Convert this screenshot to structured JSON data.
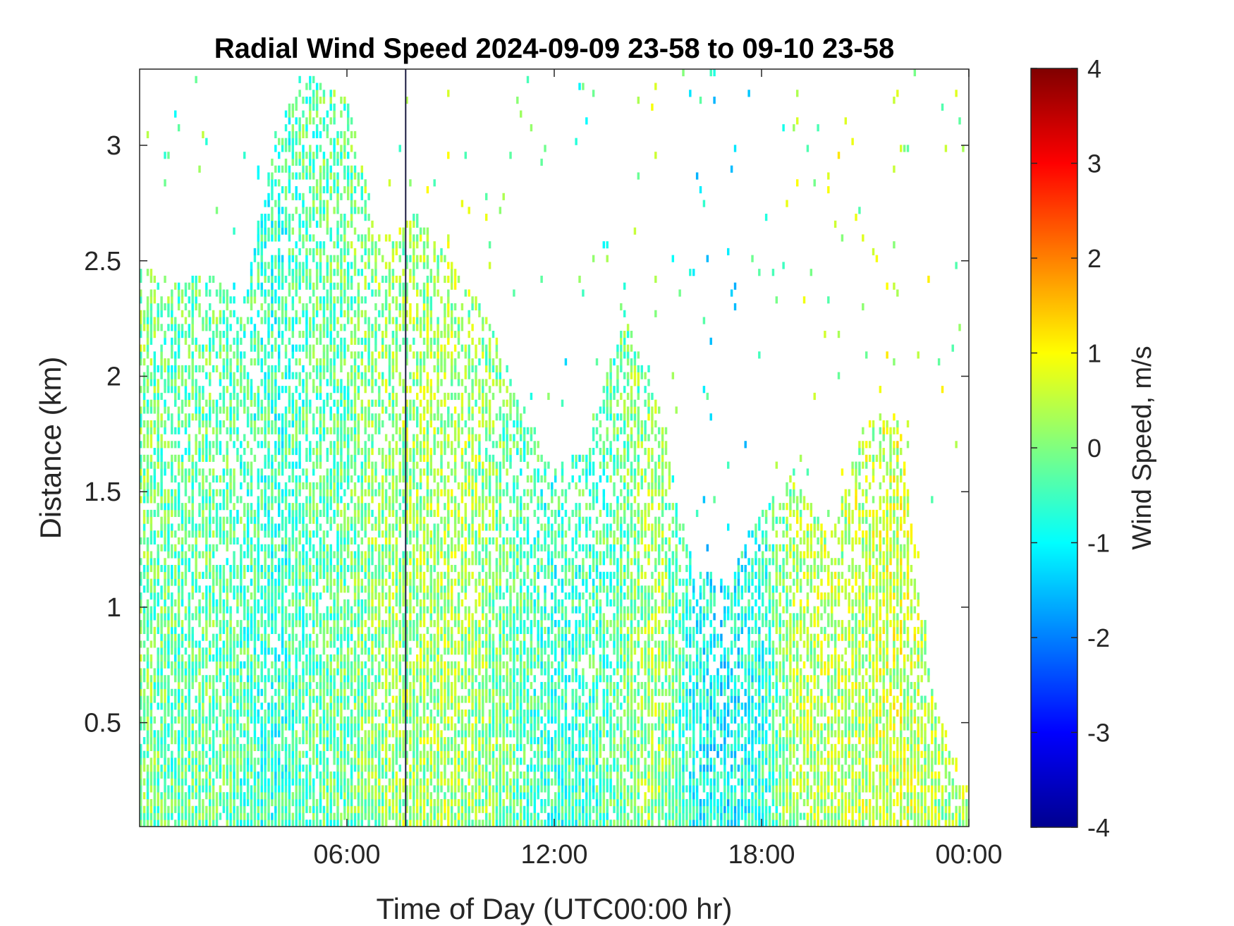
{
  "chart_data": {
    "type": "heatmap",
    "title": "Radial Wind Speed 2024-09-09 23-58 to 09-10 23-58",
    "xlabel": "Time of Day (UTC00:00 hr)",
    "ylabel": "Distance (km)",
    "xlim": [
      0,
      24
    ],
    "ylim": [
      0.05,
      3.33
    ],
    "xticks": [
      6,
      12,
      18,
      24
    ],
    "xtick_labels": [
      "06:00",
      "12:00",
      "18:00",
      "00:00"
    ],
    "yticks": [
      0.5,
      1,
      1.5,
      2,
      2.5,
      3
    ],
    "ytick_labels": [
      "0.5",
      "1",
      "1.5",
      "2",
      "2.5",
      "3"
    ],
    "colorbar": {
      "label": "Wind Speed, m/s",
      "colormap": "jet",
      "range": [
        -4,
        4
      ],
      "ticks": [
        -4,
        -3,
        -2,
        -1,
        0,
        1,
        2,
        3,
        4
      ],
      "tick_labels": [
        "-4",
        "-3",
        "-2",
        "-1",
        "0",
        "1",
        "2",
        "3",
        "4"
      ]
    },
    "vertical_marker_time": 7.7,
    "valid_data_envelope": {
      "time": [
        0,
        1,
        2,
        3,
        4,
        5,
        6,
        7,
        8,
        9,
        10,
        11,
        12,
        13,
        14,
        15,
        16,
        17,
        18,
        19,
        20,
        21,
        22,
        23,
        24
      ],
      "max_distance": [
        2.5,
        2.4,
        2.45,
        2.3,
        3.1,
        3.3,
        3.2,
        2.6,
        2.7,
        2.5,
        2.3,
        1.9,
        1.6,
        1.7,
        2.3,
        1.9,
        1.2,
        1.1,
        1.4,
        1.6,
        1.3,
        1.8,
        1.8,
        0.6,
        0.2
      ],
      "typical_speed": [
        0.0,
        -0.3,
        -0.2,
        -0.4,
        -0.6,
        -0.3,
        -0.2,
        0.1,
        0.2,
        0.3,
        0.1,
        -0.3,
        -0.6,
        -0.5,
        -0.2,
        0.3,
        -0.8,
        -1.0,
        -0.7,
        0.3,
        0.4,
        0.4,
        0.6,
        0.3,
        0.3
      ]
    }
  }
}
